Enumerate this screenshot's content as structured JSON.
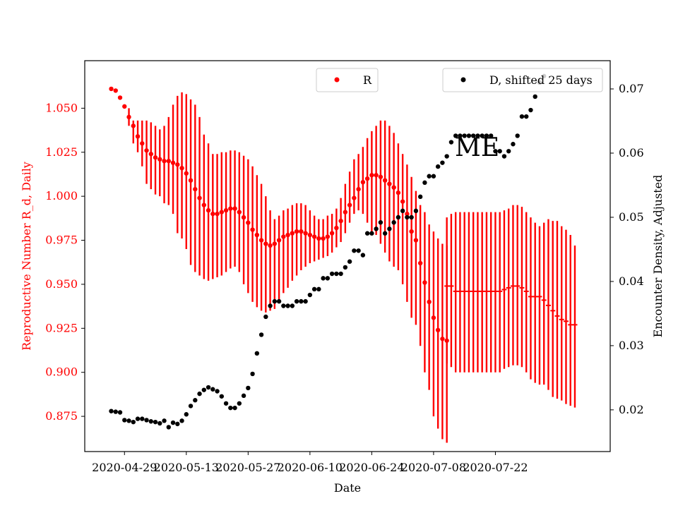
{
  "chart_data": {
    "type": "scatter",
    "annotation": "ME",
    "xlabel": "Date",
    "ylabel_left": "Reproductive Number R_d, Daily",
    "ylabel_right": "Encounter Density, Adjusted",
    "x_ticks": [
      "2020-04-29",
      "2020-05-13",
      "2020-05-27",
      "2020-06-10",
      "2020-06-24",
      "2020-07-08",
      "2020-07-22"
    ],
    "x_range": [
      "2020-04-20",
      "2020-08-17"
    ],
    "y_left_ticks": [
      "0.875",
      "0.900",
      "0.925",
      "0.950",
      "0.975",
      "1.000",
      "1.025",
      "1.050"
    ],
    "y_left_range": [
      0.855,
      1.077
    ],
    "y_right_ticks": [
      "0.02",
      "0.03",
      "0.04",
      "0.05",
      "0.06",
      "0.07"
    ],
    "y_right_range": [
      0.0135,
      0.0744
    ],
    "colors": {
      "R": "#ff0000",
      "D": "#000000"
    },
    "legends": {
      "R": "R",
      "D": "D, shifted 25 days"
    },
    "legend_placement": "top-center and top-right",
    "grid": false,
    "series_R": {
      "name": "R",
      "start_date": "2020-04-26",
      "values": [
        1.061,
        1.06,
        1.056,
        1.051,
        1.045,
        1.04,
        1.034,
        1.03,
        1.026,
        1.024,
        1.022,
        1.021,
        1.02,
        1.02,
        1.019,
        1.018,
        1.016,
        1.013,
        1.009,
        1.004,
        0.999,
        0.995,
        0.992,
        0.99,
        0.99,
        0.991,
        0.992,
        0.993,
        0.993,
        0.991,
        0.988,
        0.985,
        0.981,
        0.978,
        0.975,
        0.973,
        0.972,
        0.973,
        0.975,
        0.977,
        0.978,
        0.979,
        0.98,
        0.98,
        0.979,
        0.978,
        0.977,
        0.976,
        0.976,
        0.977,
        0.979,
        0.982,
        0.986,
        0.991,
        0.995,
        0.999,
        1.004,
        1.008,
        1.01,
        1.012,
        1.012,
        1.011,
        1.009,
        1.007,
        1.005,
        1.002,
        0.997,
        0.99,
        0.98,
        0.975,
        0.962,
        0.951,
        0.94,
        0.931,
        0.924,
        0.919,
        0.918
      ],
      "lower": [
        1.061,
        1.06,
        1.056,
        1.051,
        1.04,
        1.03,
        1.025,
        1.017,
        1.007,
        1.004,
        1.001,
        1.0,
        0.996,
        0.995,
        0.99,
        0.979,
        0.976,
        0.97,
        0.961,
        0.957,
        0.955,
        0.953,
        0.952,
        0.953,
        0.954,
        0.955,
        0.957,
        0.959,
        0.96,
        0.957,
        0.95,
        0.945,
        0.94,
        0.937,
        0.935,
        0.934,
        0.935,
        0.936,
        0.941,
        0.945,
        0.948,
        0.952,
        0.955,
        0.958,
        0.96,
        0.962,
        0.963,
        0.964,
        0.965,
        0.966,
        0.968,
        0.971,
        0.974,
        0.979,
        0.985,
        0.99,
        0.992,
        0.99,
        0.985,
        0.98,
        0.978,
        0.973,
        0.968,
        0.963,
        0.96,
        0.958,
        0.95,
        0.94,
        0.931,
        0.927,
        0.915,
        0.9,
        0.89,
        0.875,
        0.868,
        0.862,
        0.86
      ],
      "upper": [
        1.061,
        1.06,
        1.056,
        1.051,
        1.05,
        1.043,
        1.043,
        1.043,
        1.043,
        1.042,
        1.04,
        1.038,
        1.04,
        1.045,
        1.052,
        1.057,
        1.059,
        1.058,
        1.055,
        1.052,
        1.045,
        1.035,
        1.03,
        1.024,
        1.024,
        1.025,
        1.025,
        1.026,
        1.026,
        1.025,
        1.023,
        1.021,
        1.017,
        1.012,
        1.007,
        1.0,
        0.992,
        0.987,
        0.989,
        0.992,
        0.993,
        0.995,
        0.996,
        0.996,
        0.995,
        0.992,
        0.989,
        0.987,
        0.987,
        0.989,
        0.99,
        0.993,
        0.999,
        1.007,
        1.014,
        1.021,
        1.024,
        1.028,
        1.033,
        1.037,
        1.04,
        1.043,
        1.043,
        1.04,
        1.036,
        1.03,
        1.024,
        1.018,
        1.011,
        1.003,
        0.995,
        0.991,
        0.984,
        0.98,
        0.976,
        0.973,
        0.972
      ]
    },
    "series_R_tail": {
      "start_date": "2020-07-11",
      "values": [
        0.949,
        0.949,
        0.946,
        0.946,
        0.946,
        0.946,
        0.946,
        0.946,
        0.946,
        0.946,
        0.946,
        0.946,
        0.946,
        0.947,
        0.948,
        0.949,
        0.949,
        0.948,
        0.946,
        0.943,
        0.943,
        0.943,
        0.941,
        0.938,
        0.935,
        0.932,
        0.93,
        0.929,
        0.927,
        0.927
      ],
      "lower": [
        0.905,
        0.903,
        0.9,
        0.9,
        0.9,
        0.9,
        0.9,
        0.9,
        0.9,
        0.9,
        0.9,
        0.9,
        0.9,
        0.902,
        0.903,
        0.904,
        0.904,
        0.903,
        0.9,
        0.896,
        0.894,
        0.893,
        0.893,
        0.89,
        0.886,
        0.885,
        0.884,
        0.882,
        0.881,
        0.88
      ],
      "upper": [
        0.988,
        0.99,
        0.991,
        0.991,
        0.991,
        0.991,
        0.991,
        0.991,
        0.991,
        0.991,
        0.991,
        0.991,
        0.991,
        0.992,
        0.993,
        0.995,
        0.995,
        0.994,
        0.991,
        0.988,
        0.985,
        0.983,
        0.985,
        0.987,
        0.986,
        0.986,
        0.983,
        0.981,
        0.978,
        0.972
      ]
    },
    "series_D": {
      "name": "D, shifted 25 days",
      "start_date": "2020-04-26",
      "values": [
        0.0198,
        0.0197,
        0.0196,
        0.0184,
        0.0183,
        0.0181,
        0.0186,
        0.0186,
        0.0184,
        0.0182,
        0.0181,
        0.0179,
        0.0183,
        0.0173,
        0.018,
        0.0178,
        0.0183,
        0.0193,
        0.0206,
        0.0215,
        0.0225,
        0.0231,
        0.0235,
        0.0232,
        0.0229,
        0.0221,
        0.021,
        0.0203,
        0.0203,
        0.021,
        0.0222,
        0.0234,
        0.0256,
        0.0288,
        0.0317,
        0.0345,
        0.0362,
        0.0369,
        0.0369,
        0.0362,
        0.0362,
        0.0362,
        0.0369,
        0.0369,
        0.0369,
        0.0379,
        0.0388,
        0.0388,
        0.0405,
        0.0405,
        0.0412,
        0.0412,
        0.0412,
        0.0422,
        0.0431,
        0.0448,
        0.0448,
        0.0441,
        0.0475,
        0.0475,
        0.0482,
        0.0492,
        0.0475,
        0.0482,
        0.0492,
        0.05,
        0.051,
        0.05,
        0.05,
        0.051,
        0.0532,
        0.0554,
        0.0564,
        0.0564,
        0.0579,
        0.0585,
        0.0595,
        0.0617,
        0.0627,
        0.0627,
        0.0627,
        0.0627,
        0.0627,
        0.0627,
        0.0627,
        0.0627,
        0.0627,
        0.0603,
        0.0603,
        0.0595,
        0.0603,
        0.0614,
        0.0627,
        0.0657,
        0.0657,
        0.0667,
        0.0688,
        0.071,
        0.072
      ]
    }
  }
}
